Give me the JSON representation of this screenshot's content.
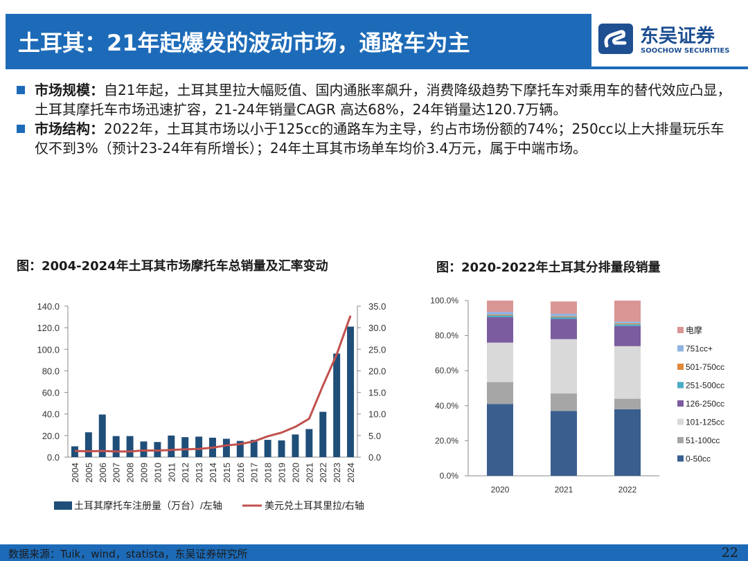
{
  "header": {
    "title": "土耳其：21年起爆发的波动市场，通路车为主",
    "logo_cn": "东吴证券",
    "logo_en": "SOOCHOW SECURITIES"
  },
  "bullets": [
    {
      "lead": "市场规模：",
      "text": "自21年起，土耳其里拉大幅贬值、国内通胀率飙升，消费降级趋势下摩托车对乘用车的替代效应凸显，土耳其摩托车市场迅速扩容，21-24年销量CAGR 高达68%，24年销量达120.7万辆。"
    },
    {
      "lead": "市场结构：",
      "text": "2022年，土耳其市场以小于125cc的通路车为主导，约占市场份额的74%；250cc以上大排量玩乐车仅不到3%（预计23-24年有所增长）；24年土耳其市场单车均价3.4万元，属于中端市场。"
    }
  ],
  "chart_titles": {
    "left": "图：2004-2024年土耳其市场摩托车总销量及汇率变动",
    "right": "图：2020-2022年土耳其分排量段销量"
  },
  "chart_data": [
    {
      "type": "bar",
      "categories": [
        "2004",
        "2005",
        "2006",
        "2007",
        "2008",
        "2009",
        "2010",
        "2011",
        "2012",
        "2013",
        "2014",
        "2015",
        "2016",
        "2017",
        "2018",
        "2019",
        "2020",
        "2021",
        "2022",
        "2023",
        "2024"
      ],
      "series": [
        {
          "name": "土耳其摩托车注册量（万台）/左轴",
          "type": "bar",
          "axis": "left",
          "values": [
            10,
            23,
            39.5,
            19.5,
            19.5,
            14.5,
            14,
            20,
            18.5,
            19,
            18,
            17,
            15,
            16,
            16,
            15.5,
            21,
            26,
            42,
            96,
            121
          ],
          "color": "#1f4e79"
        },
        {
          "name": "美元兑土耳其里拉/右轴",
          "type": "line",
          "axis": "right",
          "values": [
            1.42,
            1.34,
            1.43,
            1.3,
            1.3,
            1.55,
            1.5,
            1.67,
            1.8,
            1.9,
            2.19,
            2.72,
            3.02,
            3.65,
            4.83,
            5.68,
            7.02,
            8.9,
            16.57,
            23.8,
            32.8
          ],
          "color": "#c0504d"
        }
      ],
      "y_left": {
        "min": 0,
        "max": 140,
        "ticks": [
          "0.0",
          "20.0",
          "40.0",
          "60.0",
          "80.0",
          "100.0",
          "120.0",
          "140.0"
        ]
      },
      "y_right": {
        "min": 0,
        "max": 35,
        "ticks": [
          "0.0",
          "5.0",
          "10.0",
          "15.0",
          "20.0",
          "25.0",
          "30.0",
          "35.0"
        ]
      },
      "legend_position": "bottom",
      "grid": false
    },
    {
      "type": "bar",
      "stacked": true,
      "percent": true,
      "categories": [
        "2020",
        "2021",
        "2022"
      ],
      "series": [
        {
          "name": "0-50cc",
          "color": "#3a5f8f",
          "values": [
            41,
            37,
            38
          ]
        },
        {
          "name": "51-100cc",
          "color": "#a6a6a6",
          "values": [
            12.5,
            10,
            6
          ]
        },
        {
          "name": "101-125cc",
          "color": "#d9d9d9",
          "values": [
            22.5,
            31,
            30
          ]
        },
        {
          "name": "126-250cc",
          "color": "#7b5c9e",
          "values": [
            14.5,
            11.5,
            11.5
          ]
        },
        {
          "name": "251-500cc",
          "color": "#4bacc6",
          "values": [
            1.0,
            1.0,
            1.0
          ]
        },
        {
          "name": "501-750cc",
          "color": "#e08a3c",
          "values": [
            0.5,
            0.5,
            0.5
          ]
        },
        {
          "name": "751cc+",
          "color": "#8fb4e3",
          "values": [
            1.5,
            1.5,
            1.0
          ]
        },
        {
          "name": "电摩",
          "color": "#d99694",
          "values": [
            6.5,
            7.0,
            12.0
          ]
        }
      ],
      "y": {
        "min": 0,
        "max": 100,
        "ticks": [
          "0.0%",
          "20.0%",
          "40.0%",
          "60.0%",
          "80.0%",
          "100.0%"
        ]
      },
      "legend_position": "right",
      "grid": false
    }
  ],
  "footer": {
    "source": "数据来源：Tuik，wind，statista，东吴证券研究所",
    "page": "22"
  }
}
